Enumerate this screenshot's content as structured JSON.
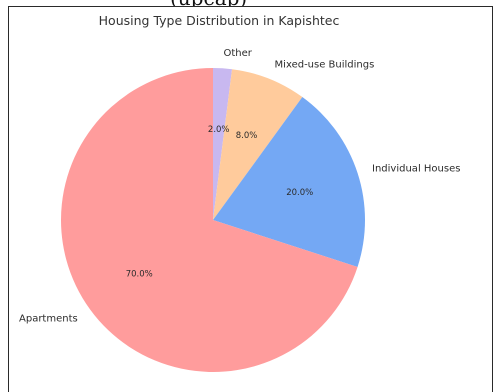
{
  "top_text": "(upcap)",
  "chart_data": {
    "type": "pie",
    "title": "Housing Type Distribution in Kapishtec",
    "slices": [
      {
        "label": "Apartments",
        "value": 70.0,
        "pct_label": "70.0%",
        "color": "#ff9c9c"
      },
      {
        "label": "Individual Houses",
        "value": 20.0,
        "pct_label": "20.0%",
        "color": "#74a8f4"
      },
      {
        "label": "Mixed-use Buildings",
        "value": 8.0,
        "pct_label": "8.0%",
        "color": "#ffcb9c"
      },
      {
        "label": "Other",
        "value": 2.0,
        "pct_label": "2.0%",
        "color": "#c8b8f0"
      }
    ],
    "start_angle": "top",
    "direction": "clockwise",
    "legend": "none"
  }
}
